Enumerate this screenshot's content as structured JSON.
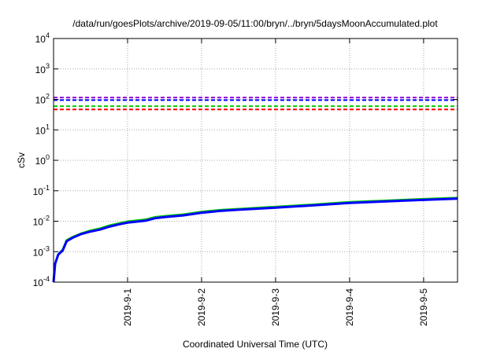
{
  "chart_data": {
    "type": "line",
    "title": "/data/run/goesPlots/archive/2019-09-05/11:00/bryn/../bryn/5daysMoonAccumulated.plot",
    "xlabel": "Coordinated Universal Time (UTC)",
    "ylabel": "cSv",
    "y_scale": "log",
    "ylim": [
      0.0001,
      10000
    ],
    "y_ticks": [
      {
        "value": 0.0001,
        "base": "10",
        "exp": "-4"
      },
      {
        "value": 0.001,
        "base": "10",
        "exp": "-3"
      },
      {
        "value": 0.01,
        "base": "10",
        "exp": "-2"
      },
      {
        "value": 0.1,
        "base": "10",
        "exp": "-1"
      },
      {
        "value": 1,
        "base": "10",
        "exp": "0"
      },
      {
        "value": 10,
        "base": "10",
        "exp": "1"
      },
      {
        "value": 100,
        "base": "10",
        "exp": "2"
      },
      {
        "value": 1000,
        "base": "10",
        "exp": "3"
      },
      {
        "value": 10000,
        "base": "10",
        "exp": "4"
      }
    ],
    "xlim": [
      "2019-08-31T00:00",
      "2019-09-05T11:00"
    ],
    "x_ticks": [
      {
        "value": "2019-09-01T00:00",
        "label": "2019-9-1"
      },
      {
        "value": "2019-09-02T00:00",
        "label": "2019-9-2"
      },
      {
        "value": "2019-09-03T00:00",
        "label": "2019-9-3"
      },
      {
        "value": "2019-09-04T00:00",
        "label": "2019-9-4"
      },
      {
        "value": "2019-09-05T00:00",
        "label": "2019-9-5"
      }
    ],
    "grid": true,
    "reference_lines": [
      {
        "color": "#9400d3",
        "y": 115
      },
      {
        "color": "#0000ff",
        "y": 95
      },
      {
        "color": "#00cc00",
        "y": 60
      },
      {
        "color": "#ff0000",
        "y": 47
      }
    ],
    "series": [
      {
        "color": "#00cc00",
        "points": [
          [
            "2019-08-31T00:00",
            0.0001
          ],
          [
            "2019-08-31T00:30",
            0.0004
          ],
          [
            "2019-08-31T01:30",
            0.0008
          ],
          [
            "2019-08-31T03:00",
            0.0012
          ],
          [
            "2019-08-31T04:15",
            0.0024
          ],
          [
            "2019-08-31T06:00",
            0.003
          ],
          [
            "2019-08-31T09:00",
            0.004
          ],
          [
            "2019-08-31T12:00",
            0.005
          ],
          [
            "2019-08-31T15:00",
            0.0058
          ],
          [
            "2019-08-31T18:00",
            0.0072
          ],
          [
            "2019-08-31T21:00",
            0.0085
          ],
          [
            "2019-09-01T00:00",
            0.0098
          ],
          [
            "2019-09-01T06:00",
            0.0115
          ],
          [
            "2019-09-01T09:00",
            0.0138
          ],
          [
            "2019-09-01T12:00",
            0.0148
          ],
          [
            "2019-09-01T18:00",
            0.0168
          ],
          [
            "2019-09-02T00:00",
            0.0205
          ],
          [
            "2019-09-02T06:00",
            0.0235
          ],
          [
            "2019-09-02T12:00",
            0.0255
          ],
          [
            "2019-09-03T00:00",
            0.03
          ],
          [
            "2019-09-03T12:00",
            0.0355
          ],
          [
            "2019-09-04T00:00",
            0.043
          ],
          [
            "2019-09-04T12:00",
            0.048
          ],
          [
            "2019-09-05T00:00",
            0.054
          ],
          [
            "2019-09-05T11:00",
            0.059
          ]
        ]
      },
      {
        "color": "#0000ff",
        "points": [
          [
            "2019-08-31T00:00",
            0.0001
          ],
          [
            "2019-08-31T00:30",
            0.0004
          ],
          [
            "2019-08-31T01:30",
            0.0008
          ],
          [
            "2019-08-31T03:00",
            0.0011
          ],
          [
            "2019-08-31T04:15",
            0.0022
          ],
          [
            "2019-08-31T06:00",
            0.0028
          ],
          [
            "2019-08-31T09:00",
            0.0038
          ],
          [
            "2019-08-31T12:00",
            0.0046
          ],
          [
            "2019-08-31T15:00",
            0.0053
          ],
          [
            "2019-08-31T18:00",
            0.0066
          ],
          [
            "2019-08-31T21:00",
            0.0078
          ],
          [
            "2019-09-01T00:00",
            0.009
          ],
          [
            "2019-09-01T06:00",
            0.0105
          ],
          [
            "2019-09-01T09:00",
            0.0126
          ],
          [
            "2019-09-01T12:00",
            0.0136
          ],
          [
            "2019-09-01T18:00",
            0.0155
          ],
          [
            "2019-09-02T00:00",
            0.019
          ],
          [
            "2019-09-02T06:00",
            0.0218
          ],
          [
            "2019-09-02T12:00",
            0.0238
          ],
          [
            "2019-09-03T00:00",
            0.028
          ],
          [
            "2019-09-03T12:00",
            0.033
          ],
          [
            "2019-09-04T00:00",
            0.04
          ],
          [
            "2019-09-04T12:00",
            0.045
          ],
          [
            "2019-09-05T00:00",
            0.05
          ],
          [
            "2019-09-05T11:00",
            0.055
          ]
        ]
      }
    ]
  }
}
